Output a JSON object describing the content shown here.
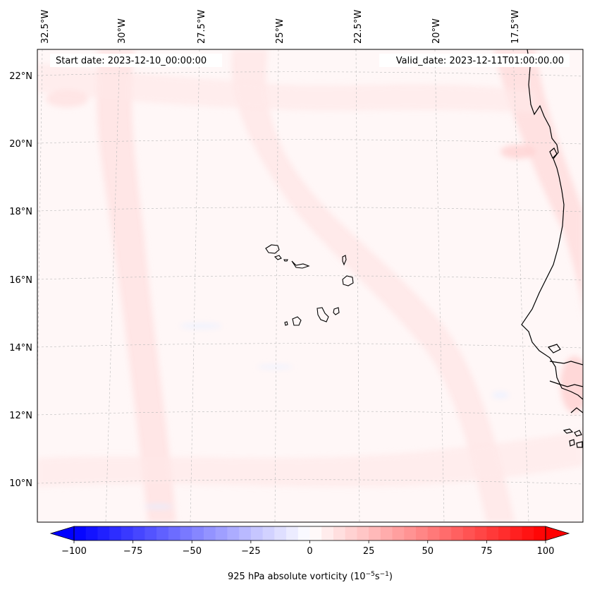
{
  "header": {
    "start_label": "Start date: 2023-12-10_00:00:00",
    "valid_label": "Valid_date: 2023-12-11T01:00:00.00"
  },
  "map": {
    "longitude_labels": [
      "32.5°W",
      "30°W",
      "27.5°W",
      "25°W",
      "22.5°W",
      "20°W",
      "17.5°W"
    ],
    "latitude_labels": [
      "22°N",
      "20°N",
      "18°N",
      "16°N",
      "14°N",
      "12°N",
      "10°N"
    ]
  },
  "colorbar": {
    "ticks": [
      -100,
      -75,
      -50,
      -25,
      0,
      25,
      50,
      75,
      100
    ],
    "tick_labels": [
      "−100",
      "−75",
      "−50",
      "−25",
      "0",
      "25",
      "50",
      "75",
      "100"
    ],
    "label": "925 hPa absolute vorticity (10",
    "label_exp1": "−5",
    "label_mid": "s",
    "label_exp2": "−1",
    "label_end": ")",
    "min": -100,
    "max": 100,
    "levels": 40,
    "colors": {
      "negative": "#0000ff",
      "neutral": "#ffffff",
      "positive": "#ff0000"
    }
  }
}
